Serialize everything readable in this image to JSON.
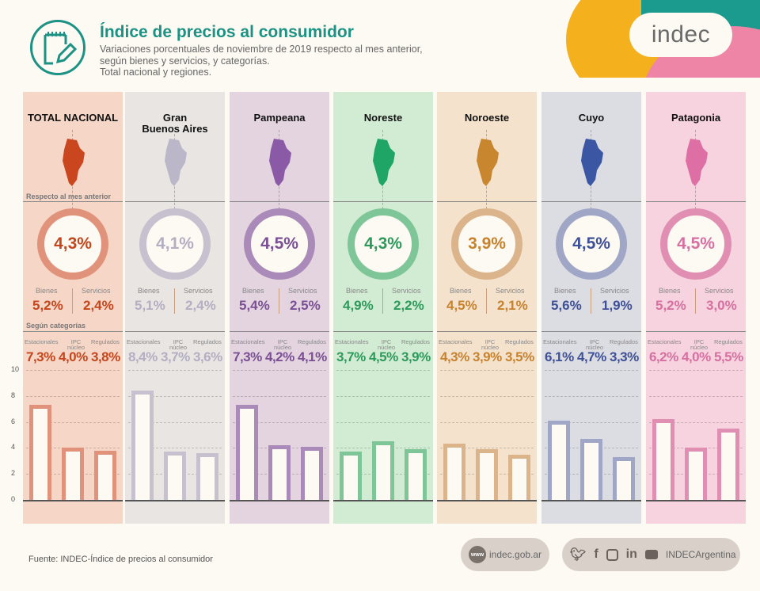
{
  "header": {
    "title": "Índice de precios al consumidor",
    "subtitle_lines": [
      "Variaciones porcentuales de noviembre de 2019 respecto al mes anterior,",
      "según bienes y servicios, y categorías.",
      "Total nacional y regiones."
    ],
    "icon": "notepad-pencil-icon",
    "logo_text": "indec"
  },
  "section_labels": {
    "monthly": "Respecto al mes anterior",
    "categories": "Según categorías"
  },
  "labels": {
    "bienes": "Bienes",
    "servicios": "Servicios",
    "estacionales": "Estacionales",
    "ipc_line1": "IPC",
    "ipc_line2": "núcleo",
    "regulados": "Regulados"
  },
  "regions": [
    {
      "name": "TOTAL NACIONAL",
      "name2": "",
      "total": "4,3%",
      "bienes": "5,2%",
      "servicios": "2,4%",
      "estacionales": "7,3%",
      "nucleo": "4,0%",
      "regulados": "3,8%",
      "bg": "#f6d6c6",
      "accent": "#e0937a",
      "text": "#c4461d",
      "map": "#c9461f"
    },
    {
      "name": "Gran",
      "name2": "Buenos Aires",
      "total": "4,1%",
      "bienes": "5,1%",
      "servicios": "2,4%",
      "estacionales": "8,4%",
      "nucleo": "3,7%",
      "regulados": "3,6%",
      "bg": "#e9e5e2",
      "accent": "#c6c0cf",
      "text": "#b3aec2",
      "map": "#bbb6c8"
    },
    {
      "name": "Pampeana",
      "name2": "",
      "total": "4,5%",
      "bienes": "5,4%",
      "servicios": "2,5%",
      "estacionales": "7,3%",
      "nucleo": "4,2%",
      "regulados": "4,1%",
      "bg": "#e3d4e0",
      "accent": "#a98ab8",
      "text": "#7a4f94",
      "map": "#8a5aa6"
    },
    {
      "name": "Noreste",
      "name2": "",
      "total": "4,3%",
      "bienes": "4,9%",
      "servicios": "2,2%",
      "estacionales": "3,7%",
      "nucleo": "4,5%",
      "regulados": "3,9%",
      "bg": "#d2ecd3",
      "accent": "#7ec597",
      "text": "#2d9a5c",
      "map": "#1fa566"
    },
    {
      "name": "Noroeste",
      "name2": "",
      "total": "3,9%",
      "bienes": "4,5%",
      "servicios": "2,1%",
      "estacionales": "4,3%",
      "nucleo": "3,9%",
      "regulados": "3,5%",
      "bg": "#f4e2cd",
      "accent": "#dbb48c",
      "text": "#c7822e",
      "map": "#c8862f"
    },
    {
      "name": "Cuyo",
      "name2": "",
      "total": "4,5%",
      "bienes": "5,6%",
      "servicios": "1,9%",
      "estacionales": "6,1%",
      "nucleo": "4,7%",
      "regulados": "3,3%",
      "bg": "#dcdce3",
      "accent": "#a0a7c6",
      "text": "#3e5096",
      "map": "#3b56a3"
    },
    {
      "name": "Patagonia",
      "name2": "",
      "total": "4,5%",
      "bienes": "5,2%",
      "servicios": "3,0%",
      "estacionales": "6,2%",
      "nucleo": "4,0%",
      "regulados": "5,5%",
      "bg": "#f6d3de",
      "accent": "#e08fb2",
      "text": "#d770a0",
      "map": "#de6fa4"
    }
  ],
  "chart_data": {
    "type": "bar",
    "title": "Según categorías",
    "categories": [
      "Estacionales",
      "IPC núcleo",
      "Regulados"
    ],
    "ylim": [
      0,
      10
    ],
    "yticks": [
      "0",
      "2",
      "4",
      "6",
      "8",
      "10"
    ],
    "grid": true,
    "series": [
      {
        "name": "TOTAL NACIONAL",
        "values": [
          7.3,
          4.0,
          3.8
        ]
      },
      {
        "name": "Gran Buenos Aires",
        "values": [
          8.4,
          3.7,
          3.6
        ]
      },
      {
        "name": "Pampeana",
        "values": [
          7.3,
          4.2,
          4.1
        ]
      },
      {
        "name": "Noreste",
        "values": [
          3.7,
          4.5,
          3.9
        ]
      },
      {
        "name": "Noroeste",
        "values": [
          4.3,
          3.9,
          3.5
        ]
      },
      {
        "name": "Cuyo",
        "values": [
          6.1,
          4.7,
          3.3
        ]
      },
      {
        "name": "Patagonia",
        "values": [
          6.2,
          4.0,
          5.5
        ]
      }
    ]
  },
  "footer": {
    "source": "Fuente: INDEC-Índice de precios al consumidor",
    "web_icon": "www",
    "website": "indec.gob.ar",
    "social_handle": "INDECArgentina",
    "social_icons": [
      "twitter-icon",
      "facebook-icon",
      "instagram-icon",
      "linkedin-icon",
      "youtube-icon"
    ]
  }
}
